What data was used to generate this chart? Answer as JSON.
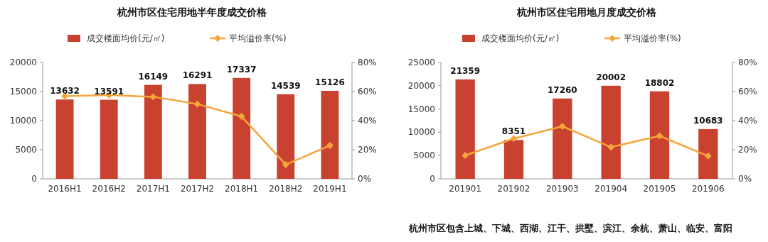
{
  "chart_data": [
    {
      "type": "bar",
      "title": "杭州市区住宅用地半年度成交价格",
      "categories": [
        "2016H1",
        "2016H2",
        "2017H1",
        "2017H2",
        "2018H1",
        "2018H2",
        "2019H1"
      ],
      "ylim": [
        0,
        20000
      ],
      "yticks": [
        0,
        5000,
        10000,
        15000,
        20000
      ],
      "y2lim": [
        0,
        80
      ],
      "y2ticks": [
        {
          "value": 0,
          "label": "0%"
        },
        {
          "value": 20,
          "label": "20%"
        },
        {
          "value": 40,
          "label": "40%"
        },
        {
          "value": 60,
          "label": "60%"
        },
        {
          "value": 80,
          "label": "80%"
        }
      ],
      "legend": "top",
      "grid": false,
      "series": [
        {
          "name": "成交楼面均价(元/㎡)",
          "color": "#c9412f",
          "values": [
            13632,
            13591,
            16149,
            16291,
            17337,
            14539,
            15126
          ],
          "value_labels": [
            "13632",
            "13591",
            "16149",
            "16291",
            "17337",
            "14539",
            "15126"
          ]
        },
        {
          "type": "line",
          "axis": "y2",
          "name": "平均溢价率(%)",
          "color": "#f5a53a",
          "marker": "diamond",
          "values": [
            56.8,
            57.6,
            56.4,
            51.4,
            42.9,
            9.8,
            22.9
          ]
        }
      ]
    },
    {
      "type": "bar",
      "title": "杭州市区住宅用地月度成交价格",
      "categories": [
        "201901",
        "201902",
        "201903",
        "201904",
        "201905",
        "201906"
      ],
      "ylim": [
        0,
        25000
      ],
      "yticks": [
        0,
        5000,
        10000,
        15000,
        20000,
        25000
      ],
      "y2lim": [
        0,
        80
      ],
      "y2ticks": [
        {
          "value": 0,
          "label": "0%"
        },
        {
          "value": 20,
          "label": "20%"
        },
        {
          "value": 40,
          "label": "40%"
        },
        {
          "value": 60,
          "label": "60%"
        },
        {
          "value": 80,
          "label": "80%"
        }
      ],
      "legend": "top",
      "grid": false,
      "annotations": [
        "杭州市区包含上城、下城、西湖、江干、拱墅、滨江、余杭、萧山、临安、富阳"
      ],
      "series": [
        {
          "name": "成交楼面均价(元/㎡)",
          "color": "#c9412f",
          "values": [
            21359,
            8351,
            17260,
            20002,
            18802,
            10683
          ],
          "value_labels": [
            "21359",
            "8351",
            "17260",
            "20002",
            "18802",
            "10683"
          ]
        },
        {
          "type": "line",
          "axis": "y2",
          "name": "平均溢价率(%)",
          "color": "#f5a53a",
          "marker": "diamond",
          "values": [
            16.1,
            27.7,
            36.1,
            21.8,
            29.5,
            15.7
          ]
        }
      ]
    }
  ]
}
